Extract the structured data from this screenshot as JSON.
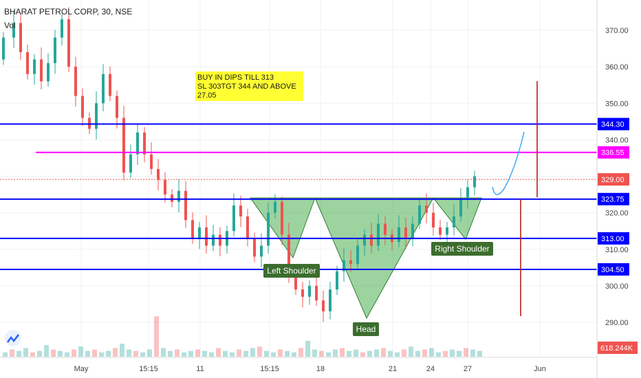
{
  "header": {
    "symbol_line": "BHARAT PETROL CORP, 30, NSE",
    "vol_label": "Vol"
  },
  "annotation": {
    "lines": [
      "BUY IN DIPS TILL 313",
      "SL 303TGT 344 AND ABOVE",
      "27.05"
    ]
  },
  "colors": {
    "up": "#26a69a",
    "down": "#ef5350",
    "support_line": "#0000ff",
    "target_line": "#ff00ff",
    "pattern_fill": "#4caf50",
    "pattern_label_bg": "#3c6d2e",
    "price_tag": "#ef5350",
    "forecast": "#2196f3",
    "arrow": "#b71c1c",
    "note_bg": "#ffff33"
  },
  "chart_data": {
    "type": "candlestick",
    "title": "BHARAT PETROL CORP, 30, NSE",
    "y_axis": {
      "min": 286,
      "max": 380,
      "ticks": [
        290,
        300,
        310,
        320,
        330,
        340,
        350,
        360,
        370
      ],
      "tick_labels": [
        "290.00",
        "300.00",
        "310.00",
        "320.00",
        "330.00",
        "340.00",
        "350.00",
        "360.00",
        "370.00"
      ]
    },
    "x_axis": {
      "tick_labels": [
        "May",
        "15:15",
        "11",
        "15:15",
        "18",
        "21",
        "24",
        "27",
        "Jun"
      ]
    },
    "horizontal_levels": [
      {
        "value": 344.3,
        "label": "344.30",
        "role": "support"
      },
      {
        "value": 336.55,
        "label": "336.55",
        "role": "target"
      },
      {
        "value": 323.75,
        "label": "323.75",
        "role": "support"
      },
      {
        "value": 313.0,
        "label": "313.00",
        "role": "support"
      },
      {
        "value": 304.5,
        "label": "304.50",
        "role": "support"
      }
    ],
    "last_price": {
      "value": 329.0,
      "label": "329.00"
    },
    "volume_label": "618.244K",
    "pattern": {
      "name": "inverse head and shoulders",
      "labels": [
        "Left Shoulder",
        "Head",
        "Right Shoulder"
      ],
      "neckline": 323.75,
      "left_shoulder_low": 307.5,
      "head_low": 291.5,
      "right_shoulder_low": 312.5
    },
    "price_path": [
      [
        0,
        362
      ],
      [
        3,
        368
      ],
      [
        5,
        372
      ],
      [
        7,
        364
      ],
      [
        9,
        358
      ],
      [
        11,
        362
      ],
      [
        13,
        356
      ],
      [
        15,
        361
      ],
      [
        17,
        368
      ],
      [
        19,
        373
      ],
      [
        21,
        360
      ],
      [
        23,
        352
      ],
      [
        25,
        346
      ],
      [
        27,
        343
      ],
      [
        29,
        350
      ],
      [
        31,
        358
      ],
      [
        33,
        352
      ],
      [
        35,
        346
      ],
      [
        37,
        331
      ],
      [
        39,
        336
      ],
      [
        41,
        342
      ],
      [
        43,
        336
      ],
      [
        45,
        332
      ],
      [
        47,
        329
      ],
      [
        49,
        325
      ],
      [
        51,
        323
      ],
      [
        53,
        326
      ],
      [
        55,
        318
      ],
      [
        57,
        313
      ],
      [
        59,
        316
      ],
      [
        61,
        311
      ],
      [
        63,
        314
      ],
      [
        65,
        311
      ],
      [
        67,
        315
      ],
      [
        69,
        322
      ],
      [
        71,
        319
      ],
      [
        73,
        313
      ],
      [
        75,
        308
      ],
      [
        77,
        311
      ],
      [
        79,
        320
      ],
      [
        81,
        323
      ],
      [
        83,
        314
      ],
      [
        85,
        303
      ],
      [
        87,
        299
      ],
      [
        89,
        297
      ],
      [
        91,
        300
      ],
      [
        93,
        296
      ],
      [
        95,
        293
      ],
      [
        97,
        299
      ],
      [
        99,
        304
      ],
      [
        101,
        307
      ],
      [
        103,
        306
      ],
      [
        105,
        311
      ],
      [
        107,
        314
      ],
      [
        109,
        311
      ],
      [
        111,
        317
      ],
      [
        113,
        314
      ],
      [
        115,
        312
      ],
      [
        117,
        316
      ],
      [
        119,
        313
      ],
      [
        121,
        317
      ],
      [
        123,
        322
      ],
      [
        125,
        320
      ],
      [
        127,
        316
      ],
      [
        129,
        314
      ],
      [
        131,
        316
      ],
      [
        133,
        319
      ],
      [
        135,
        324
      ],
      [
        137,
        327
      ],
      [
        139,
        330
      ]
    ],
    "volume": [
      3,
      5,
      4,
      6,
      3,
      4,
      8,
      5,
      4,
      3,
      5,
      7,
      4,
      5,
      3,
      4,
      6,
      9,
      5,
      4,
      3,
      5,
      28,
      6,
      4,
      5,
      3,
      4,
      5,
      4,
      3,
      6,
      4,
      3,
      5,
      4,
      6,
      7,
      4,
      3,
      5,
      4,
      3,
      6,
      11,
      5,
      4,
      3,
      5,
      6,
      4,
      5,
      3,
      4,
      5,
      6,
      4,
      3,
      5,
      7,
      4,
      5,
      6,
      3,
      4,
      5,
      4,
      6,
      5,
      4
    ]
  }
}
